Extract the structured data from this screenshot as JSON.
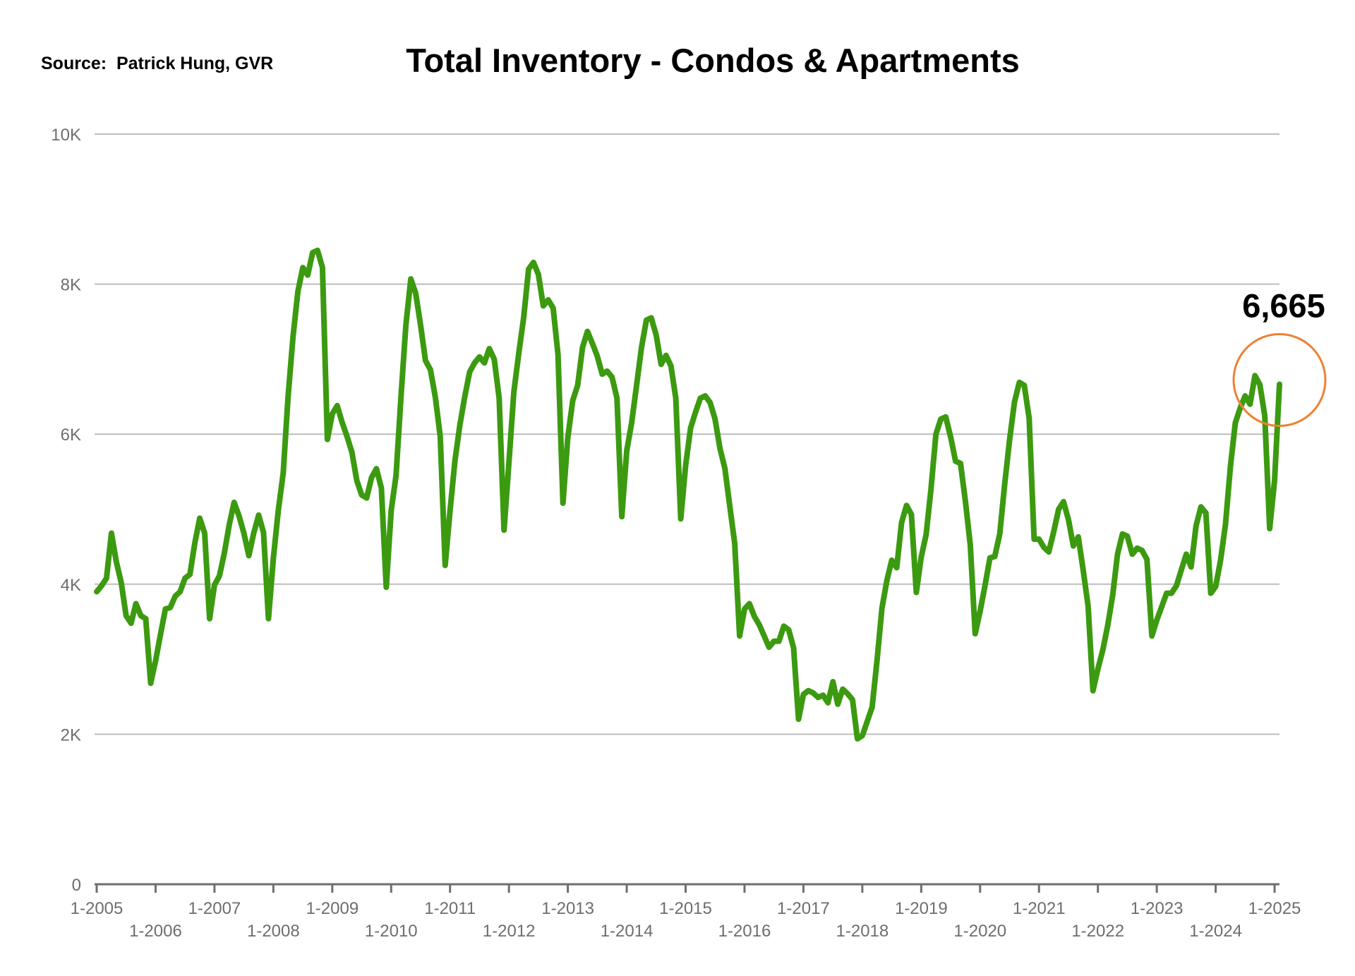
{
  "source_text": "Source:  Patrick Hung, GVR",
  "colors": {
    "line": "#3c9a10",
    "grid": "#bdbdbd",
    "axis": "#6e6e6e",
    "highlight_circle": "#ee8133"
  },
  "chart_data": {
    "type": "line",
    "title": "Total Inventory - Condos & Apartments",
    "xlabel": "",
    "ylabel": "",
    "ylim": [
      0,
      10000
    ],
    "yticks": [
      0,
      2000,
      4000,
      6000,
      8000,
      10000
    ],
    "ytick_labels": [
      "0",
      "2K",
      "4K",
      "6K",
      "8K",
      "10K"
    ],
    "x_start": "2005-01",
    "x_end": "2025-02",
    "xtick_labels": [
      "1-2005",
      "1-2006",
      "1-2007",
      "1-2008",
      "1-2009",
      "1-2010",
      "1-2011",
      "1-2012",
      "1-2013",
      "1-2014",
      "1-2015",
      "1-2016",
      "1-2017",
      "1-2018",
      "1-2019",
      "1-2020",
      "1-2021",
      "1-2022",
      "1-2023",
      "1-2024",
      "1-2025"
    ],
    "grid": true,
    "legend": "none",
    "annotation": {
      "text": "6,665",
      "x": "2025-02",
      "y": 6665,
      "circled": true
    },
    "series": [
      {
        "x": [
          "2005-01",
          "2005-02",
          "2005-03",
          "2005-04",
          "2005-05",
          "2005-06",
          "2005-07",
          "2005-08",
          "2005-09",
          "2005-10",
          "2005-11",
          "2005-12",
          "2006-01",
          "2006-02",
          "2006-03",
          "2006-04",
          "2006-05",
          "2006-06",
          "2006-07",
          "2006-08",
          "2006-09",
          "2006-10",
          "2006-11",
          "2006-12",
          "2007-01",
          "2007-02",
          "2007-03",
          "2007-04",
          "2007-05",
          "2007-06",
          "2007-07",
          "2007-08",
          "2007-09",
          "2007-10",
          "2007-11",
          "2007-12",
          "2008-01",
          "2008-02",
          "2008-03",
          "2008-04",
          "2008-05",
          "2008-06",
          "2008-07",
          "2008-08",
          "2008-09",
          "2008-10",
          "2008-11",
          "2008-12",
          "2009-01",
          "2009-02",
          "2009-03",
          "2009-04",
          "2009-05",
          "2009-06",
          "2009-07",
          "2009-08",
          "2009-09",
          "2009-10",
          "2009-11",
          "2009-12",
          "2010-01",
          "2010-02",
          "2010-03",
          "2010-04",
          "2010-05",
          "2010-06",
          "2010-07",
          "2010-08",
          "2010-09",
          "2010-10",
          "2010-11",
          "2010-12",
          "2011-01",
          "2011-02",
          "2011-03",
          "2011-04",
          "2011-05",
          "2011-06",
          "2011-07",
          "2011-08",
          "2011-09",
          "2011-10",
          "2011-11",
          "2011-12",
          "2012-01",
          "2012-02",
          "2012-03",
          "2012-04",
          "2012-05",
          "2012-06",
          "2012-07",
          "2012-08",
          "2012-09",
          "2012-10",
          "2012-11",
          "2012-12",
          "2013-01",
          "2013-02",
          "2013-03",
          "2013-04",
          "2013-05",
          "2013-06",
          "2013-07",
          "2013-08",
          "2013-09",
          "2013-10",
          "2013-11",
          "2013-12",
          "2014-01",
          "2014-02",
          "2014-03",
          "2014-04",
          "2014-05",
          "2014-06",
          "2014-07",
          "2014-08",
          "2014-09",
          "2014-10",
          "2014-11",
          "2014-12",
          "2015-01",
          "2015-02",
          "2015-03",
          "2015-04",
          "2015-05",
          "2015-06",
          "2015-07",
          "2015-08",
          "2015-09",
          "2015-10",
          "2015-11",
          "2015-12",
          "2016-01",
          "2016-02",
          "2016-03",
          "2016-04",
          "2016-05",
          "2016-06",
          "2016-07",
          "2016-08",
          "2016-09",
          "2016-10",
          "2016-11",
          "2016-12",
          "2017-01",
          "2017-02",
          "2017-03",
          "2017-04",
          "2017-05",
          "2017-06",
          "2017-07",
          "2017-08",
          "2017-09",
          "2017-10",
          "2017-11",
          "2017-12",
          "2018-01",
          "2018-02",
          "2018-03",
          "2018-04",
          "2018-05",
          "2018-06",
          "2018-07",
          "2018-08",
          "2018-09",
          "2018-10",
          "2018-11",
          "2018-12",
          "2019-01",
          "2019-02",
          "2019-03",
          "2019-04",
          "2019-05",
          "2019-06",
          "2019-07",
          "2019-08",
          "2019-09",
          "2019-10",
          "2019-11",
          "2019-12",
          "2020-01",
          "2020-02",
          "2020-03",
          "2020-04",
          "2020-05",
          "2020-06",
          "2020-07",
          "2020-08",
          "2020-09",
          "2020-10",
          "2020-11",
          "2020-12",
          "2021-01",
          "2021-02",
          "2021-03",
          "2021-04",
          "2021-05",
          "2021-06",
          "2021-07",
          "2021-08",
          "2021-09",
          "2021-10",
          "2021-11",
          "2021-12",
          "2022-01",
          "2022-02",
          "2022-03",
          "2022-04",
          "2022-05",
          "2022-06",
          "2022-07",
          "2022-08",
          "2022-09",
          "2022-10",
          "2022-11",
          "2022-12",
          "2023-01",
          "2023-02",
          "2023-03",
          "2023-04",
          "2023-05",
          "2023-06",
          "2023-07",
          "2023-08",
          "2023-09",
          "2023-10",
          "2023-11",
          "2023-12",
          "2024-01",
          "2024-02",
          "2024-03",
          "2024-04",
          "2024-05",
          "2024-06",
          "2024-07",
          "2024-08",
          "2024-09",
          "2024-10",
          "2024-11",
          "2024-12",
          "2025-01",
          "2025-02"
        ],
        "values": [
          3900,
          3980,
          4080,
          4680,
          4300,
          4020,
          3580,
          3480,
          3740,
          3580,
          3540,
          2680,
          2980,
          3330,
          3670,
          3690,
          3840,
          3900,
          4080,
          4130,
          4550,
          4880,
          4680,
          3540,
          3990,
          4110,
          4410,
          4790,
          5090,
          4910,
          4680,
          4380,
          4680,
          4920,
          4690,
          3540,
          4350,
          4980,
          5480,
          6500,
          7300,
          7900,
          8220,
          8120,
          8420,
          8450,
          8220,
          5930,
          6270,
          6380,
          6160,
          5970,
          5760,
          5380,
          5190,
          5150,
          5420,
          5540,
          5280,
          3960,
          4980,
          5450,
          6500,
          7450,
          8070,
          7880,
          7450,
          6980,
          6860,
          6490,
          5970,
          4250,
          4980,
          5650,
          6120,
          6500,
          6830,
          6950,
          7030,
          6950,
          7140,
          7000,
          6480,
          4720,
          5630,
          6560,
          7080,
          7550,
          8200,
          8290,
          8130,
          7710,
          7790,
          7680,
          7060,
          5080,
          5960,
          6450,
          6650,
          7160,
          7370,
          7210,
          7040,
          6800,
          6840,
          6760,
          6480,
          4900,
          5780,
          6150,
          6650,
          7150,
          7520,
          7550,
          7320,
          6930,
          7050,
          6910,
          6480,
          4870,
          5580,
          6080,
          6290,
          6480,
          6510,
          6420,
          6200,
          5810,
          5540,
          5040,
          4540,
          3310,
          3670,
          3740,
          3570,
          3460,
          3310,
          3160,
          3240,
          3240,
          3440,
          3390,
          3150,
          2200,
          2530,
          2580,
          2550,
          2490,
          2520,
          2420,
          2700,
          2400,
          2600,
          2540,
          2460,
          1940,
          1980,
          2170,
          2360,
          2980,
          3680,
          4050,
          4320,
          4220,
          4820,
          5050,
          4930,
          3890,
          4360,
          4660,
          5270,
          6000,
          6200,
          6230,
          5960,
          5640,
          5610,
          5110,
          4520,
          3340,
          3640,
          3980,
          4350,
          4370,
          4670,
          5330,
          5920,
          6430,
          6690,
          6650,
          6210,
          4600,
          4600,
          4490,
          4430,
          4700,
          5000,
          5100,
          4860,
          4510,
          4630,
          4190,
          3710,
          2580,
          2870,
          3120,
          3450,
          3850,
          4400,
          4670,
          4640,
          4400,
          4480,
          4450,
          4330,
          3310,
          3520,
          3700,
          3880,
          3880,
          3980,
          4190,
          4400,
          4230,
          4780,
          5030,
          4950,
          3880,
          3970,
          4320,
          4800,
          5570,
          6150,
          6350,
          6510,
          6400,
          6780,
          6660,
          6250,
          4740,
          5380,
          6665
        ]
      }
    ]
  }
}
